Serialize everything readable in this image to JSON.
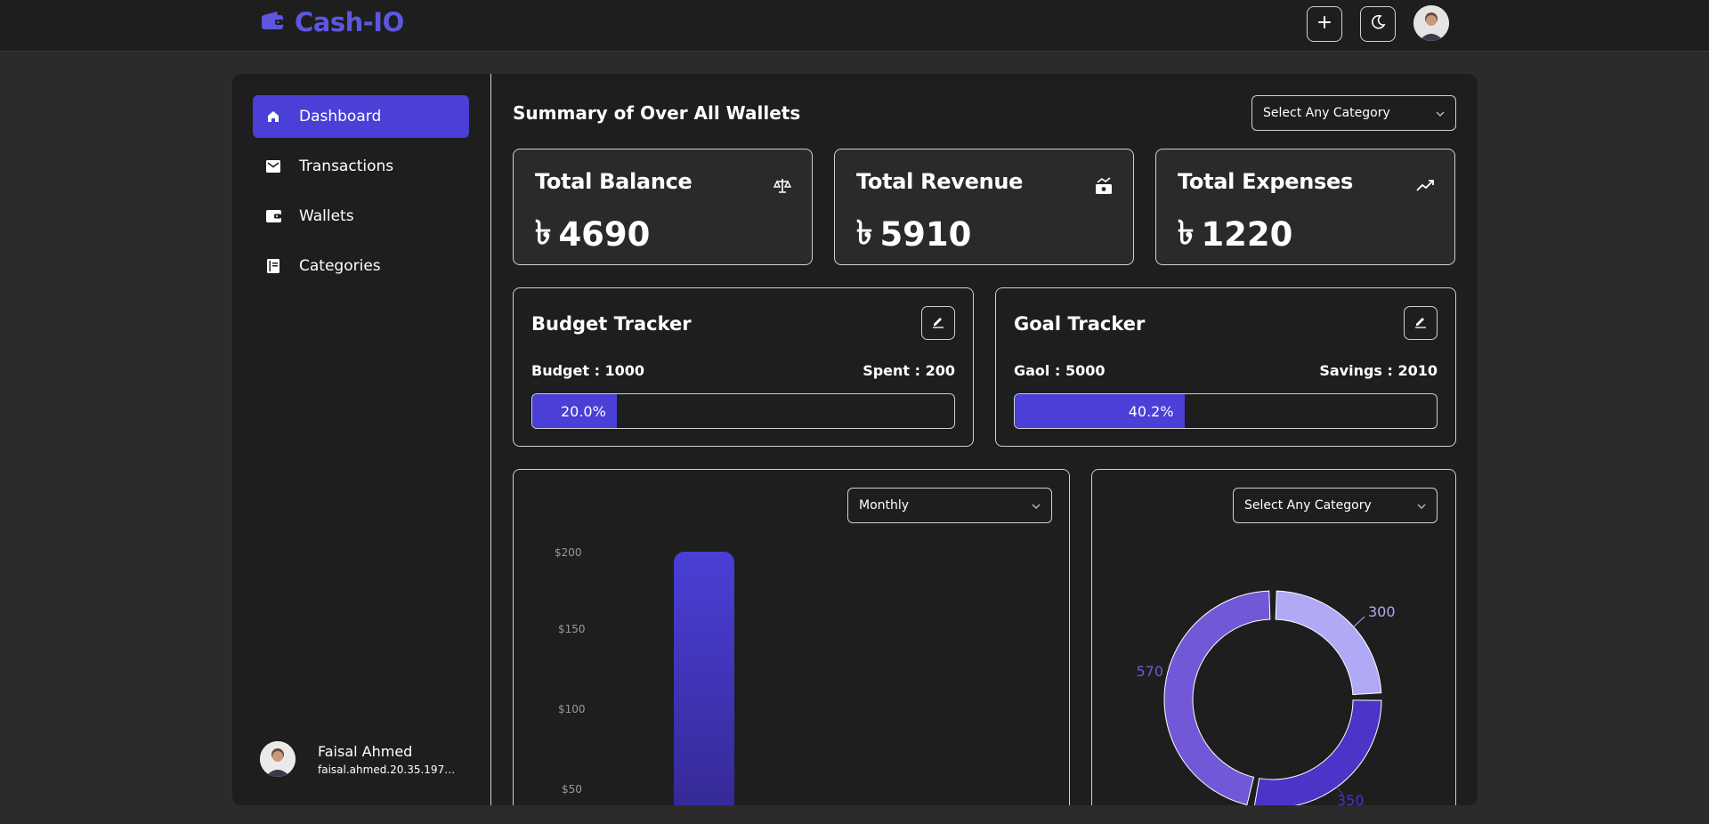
{
  "app": {
    "name": "Cash-IO"
  },
  "header": {
    "add_icon": "plus-icon",
    "theme_icon": "moon-icon"
  },
  "sidebar": {
    "items": [
      {
        "label": "Dashboard",
        "icon": "home-icon",
        "active": true
      },
      {
        "label": "Transactions",
        "icon": "envelope-icon",
        "active": false
      },
      {
        "label": "Wallets",
        "icon": "wallet-icon",
        "active": false
      },
      {
        "label": "Categories",
        "icon": "book-icon",
        "active": false
      }
    ],
    "user": {
      "name": "Faisal Ahmed",
      "email": "faisal.ahmed.20.35.197@g..."
    }
  },
  "summary": {
    "title": "Summary of Over All Wallets",
    "category_select": "Select Any Category",
    "currency_symbol": "৳",
    "stats": [
      {
        "title": "Total Balance",
        "value": "4690",
        "icon": "scale-icon"
      },
      {
        "title": "Total Revenue",
        "value": "5910",
        "icon": "money-icon"
      },
      {
        "title": "Total Expenses",
        "value": "1220",
        "icon": "trend-icon"
      }
    ]
  },
  "budget": {
    "title": "Budget Tracker",
    "budget_label": "Budget : 1000",
    "spent_label": "Spent : 200",
    "percent_label": "20.0%",
    "percent": 20.0
  },
  "goal": {
    "title": "Goal Tracker",
    "goal_label": "Gaol : 5000",
    "savings_label": "Savings : 2010",
    "percent_label": "40.2%",
    "percent": 40.2
  },
  "bar_chart": {
    "period_select": "Monthly"
  },
  "pie_chart": {
    "category_select": "Select Any Category"
  },
  "chart_data": [
    {
      "type": "bar",
      "y_ticks": [
        "$200",
        "$150",
        "$100",
        "$50"
      ],
      "ylim": [
        0,
        200
      ],
      "values": [
        200
      ]
    },
    {
      "type": "pie",
      "values": [
        300,
        350,
        570
      ],
      "labels": [
        "300",
        "350",
        "570"
      ],
      "colors": [
        "#b0a9f5",
        "#4a35c8",
        "#7258d6"
      ]
    }
  ],
  "colors": {
    "accent": "#4a3fd6",
    "brand": "#5b57e0"
  }
}
